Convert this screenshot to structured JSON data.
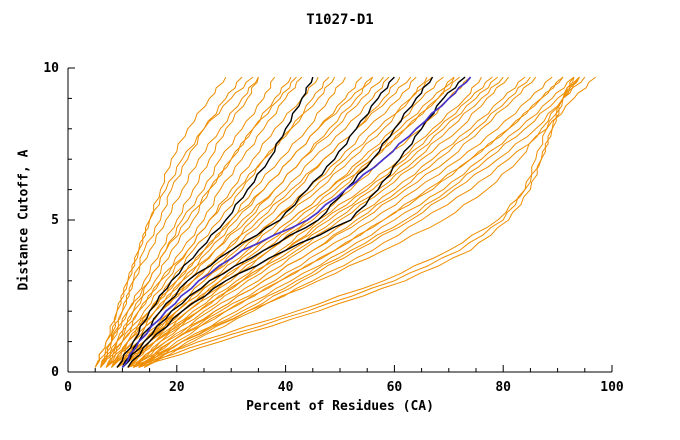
{
  "chart_data": {
    "type": "line",
    "title": "T1027-D1",
    "xlabel": "Percent of Residues (CA)",
    "ylabel": "Distance Cutoff, A",
    "xlim": [
      0,
      100
    ],
    "ylim": [
      0,
      10
    ],
    "xticks": [
      0,
      20,
      40,
      60,
      80,
      100
    ],
    "yticks": [
      0,
      5,
      10
    ],
    "x_minor_step": 5,
    "y_minor_step": 1,
    "grid": false,
    "legend": "none",
    "colors": {
      "orange": "#ef8e00",
      "black": "#000000",
      "blue": "#4433cc",
      "axis": "#000000"
    },
    "y_levels": [
      0.15,
      1,
      2,
      3,
      4,
      5,
      6,
      7,
      8,
      9,
      9.7
    ],
    "series_orange": [
      [
        5,
        7,
        9,
        11,
        13,
        15,
        17,
        19,
        22,
        26,
        29
      ],
      [
        6,
        8,
        10,
        12,
        14,
        17,
        19,
        22,
        25,
        29,
        32
      ],
      [
        6,
        8,
        11,
        14,
        17,
        20,
        23,
        26,
        29,
        33,
        35
      ],
      [
        6,
        9,
        12,
        15,
        18,
        21,
        25,
        28,
        32,
        36,
        38
      ],
      [
        7,
        9,
        12,
        16,
        19,
        23,
        26,
        30,
        34,
        38,
        41
      ],
      [
        7,
        10,
        13,
        17,
        21,
        25,
        28,
        32,
        36,
        40,
        43
      ],
      [
        7,
        10,
        14,
        18,
        22,
        26,
        30,
        34,
        38,
        43,
        46
      ],
      [
        8,
        11,
        15,
        19,
        23,
        28,
        32,
        36,
        41,
        45,
        48
      ],
      [
        8,
        11,
        15,
        20,
        25,
        30,
        34,
        39,
        44,
        48,
        51
      ],
      [
        8,
        12,
        16,
        21,
        26,
        31,
        36,
        41,
        46,
        51,
        54
      ],
      [
        9,
        12,
        17,
        22,
        27,
        33,
        38,
        43,
        48,
        53,
        56
      ],
      [
        9,
        13,
        17,
        23,
        29,
        34,
        40,
        45,
        51,
        56,
        59
      ],
      [
        9,
        13,
        18,
        24,
        30,
        36,
        42,
        47,
        53,
        58,
        61
      ],
      [
        10,
        14,
        19,
        25,
        31,
        38,
        44,
        50,
        55,
        61,
        64
      ],
      [
        10,
        14,
        20,
        26,
        33,
        39,
        46,
        52,
        58,
        63,
        66
      ],
      [
        10,
        15,
        20,
        27,
        34,
        41,
        48,
        54,
        60,
        65,
        69
      ],
      [
        11,
        15,
        21,
        28,
        36,
        43,
        50,
        56,
        62,
        68,
        71
      ],
      [
        11,
        16,
        22,
        30,
        37,
        45,
        52,
        58,
        65,
        70,
        74
      ],
      [
        11,
        16,
        23,
        31,
        39,
        46,
        54,
        61,
        67,
        73,
        76
      ],
      [
        12,
        17,
        24,
        32,
        40,
        48,
        56,
        63,
        69,
        75,
        79
      ],
      [
        12,
        17,
        25,
        33,
        42,
        50,
        58,
        65,
        72,
        77,
        81
      ],
      [
        12,
        18,
        26,
        35,
        43,
        52,
        60,
        67,
        74,
        80,
        84
      ],
      [
        13,
        19,
        27,
        36,
        45,
        54,
        62,
        70,
        76,
        82,
        86
      ],
      [
        13,
        19,
        28,
        38,
        47,
        56,
        64,
        72,
        79,
        85,
        89
      ],
      [
        13,
        20,
        29,
        39,
        49,
        58,
        66,
        74,
        81,
        87,
        91
      ],
      [
        14,
        21,
        31,
        41,
        51,
        60,
        69,
        76,
        83,
        89,
        93
      ],
      [
        14,
        22,
        33,
        43,
        53,
        63,
        71,
        79,
        86,
        91,
        95
      ],
      [
        14,
        23,
        34,
        45,
        56,
        65,
        74,
        81,
        88,
        93,
        97
      ],
      [
        12,
        21,
        33,
        46,
        58,
        69,
        77,
        83,
        87,
        91,
        94
      ],
      [
        13,
        28,
        46,
        62,
        74,
        81,
        85,
        87,
        89,
        91,
        93
      ],
      [
        11,
        24,
        42,
        58,
        70,
        79,
        84,
        87,
        89,
        91,
        93
      ],
      [
        12,
        26,
        44,
        60,
        72,
        80,
        84,
        86,
        88,
        91,
        94
      ],
      [
        9,
        16,
        24,
        32,
        41,
        49,
        57,
        64,
        70,
        76,
        80
      ],
      [
        8,
        14,
        20,
        27,
        34,
        41,
        48,
        55,
        61,
        67,
        71
      ],
      [
        7,
        12,
        17,
        23,
        29,
        35,
        41,
        47,
        53,
        59,
        63
      ],
      [
        6,
        10,
        15,
        20,
        25,
        30,
        36,
        41,
        46,
        52,
        56
      ],
      [
        6,
        9,
        13,
        17,
        22,
        26,
        31,
        36,
        41,
        46,
        49
      ],
      [
        5,
        8,
        11,
        15,
        18,
        22,
        26,
        30,
        34,
        39,
        42
      ],
      [
        5,
        7,
        10,
        12,
        15,
        18,
        21,
        24,
        28,
        32,
        35
      ],
      [
        6,
        8,
        9,
        11,
        13,
        15,
        18,
        21,
        25,
        30,
        34
      ],
      [
        7,
        11,
        16,
        21,
        27,
        32,
        38,
        43,
        49,
        54,
        58
      ],
      [
        8,
        13,
        19,
        25,
        32,
        38,
        45,
        51,
        57,
        63,
        67
      ],
      [
        9,
        15,
        22,
        29,
        37,
        44,
        51,
        58,
        64,
        70,
        74
      ],
      [
        10,
        16,
        24,
        32,
        40,
        47,
        55,
        62,
        68,
        74,
        78
      ],
      [
        11,
        18,
        27,
        36,
        45,
        53,
        61,
        68,
        75,
        81,
        85
      ],
      [
        12,
        19,
        29,
        39,
        49,
        58,
        67,
        74,
        81,
        87,
        91
      ],
      [
        13,
        21,
        32,
        42,
        52,
        62,
        70,
        77,
        84,
        90,
        94
      ],
      [
        9,
        14,
        21,
        28,
        35,
        42,
        49,
        56,
        62,
        68,
        72
      ]
    ],
    "series_black": [
      [
        9,
        12,
        15,
        19,
        24,
        29,
        33,
        37,
        40,
        43,
        45
      ],
      [
        10,
        13,
        17,
        22,
        30,
        39,
        44,
        49,
        53,
        57,
        60
      ],
      [
        10,
        14,
        19,
        26,
        36,
        46,
        51,
        56,
        60,
        64,
        67
      ],
      [
        11,
        15,
        21,
        29,
        40,
        52,
        57,
        61,
        65,
        69,
        73
      ]
    ],
    "series_blue": [
      [
        10,
        13,
        18,
        24,
        32,
        44,
        51,
        58,
        64,
        70,
        74
      ]
    ]
  }
}
